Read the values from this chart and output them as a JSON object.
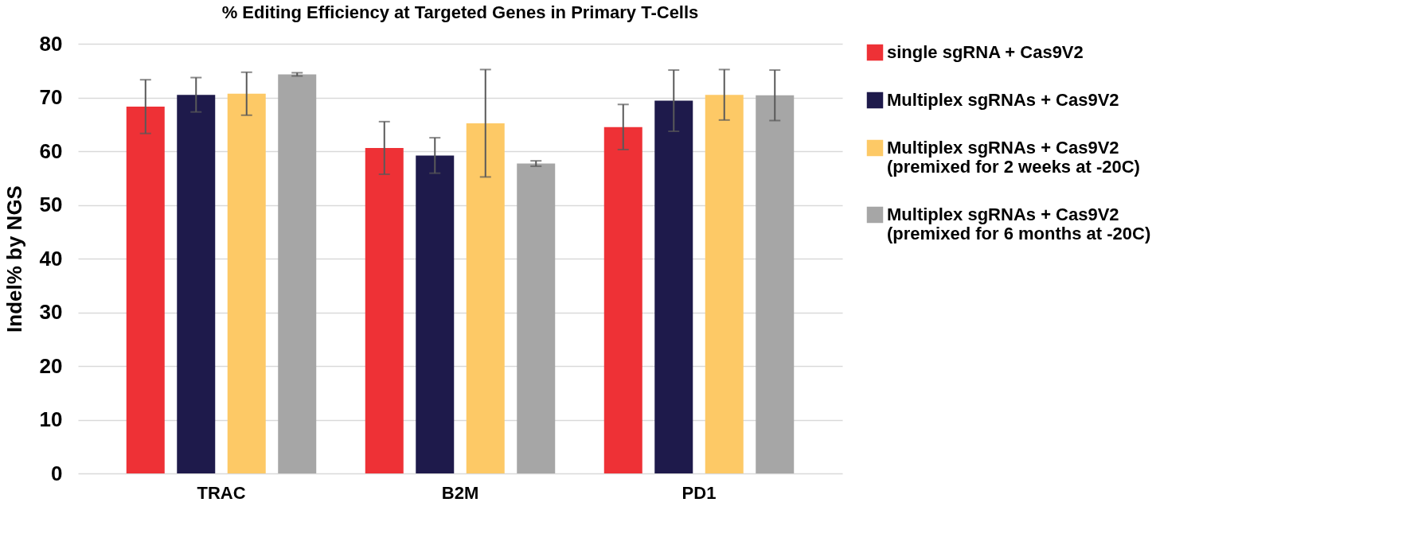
{
  "chart_data": {
    "type": "bar",
    "title": "% Editing Efficiency at Targeted Genes in Primary T-Cells",
    "ylabel": "Indel% by NGS",
    "categories": [
      "TRAC",
      "B2M",
      "PD1"
    ],
    "series": [
      {
        "name": "single sgRNA + Cas9V2",
        "color": "#ee3136",
        "values": [
          68.3,
          60.6,
          64.5
        ],
        "errors": [
          5.0,
          4.9,
          4.2
        ]
      },
      {
        "name": "Multiplex sgRNAs + Cas9V2",
        "color": "#1e1a4b",
        "values": [
          70.5,
          59.2,
          69.4
        ],
        "errors": [
          3.2,
          3.3,
          5.7
        ]
      },
      {
        "name": "Multiplex sgRNAs + Cas9V2 (premixed for 2 weeks at -20C)",
        "color": "#fdc966",
        "values": [
          70.7,
          65.2,
          70.5
        ],
        "errors": [
          4.0,
          10.0,
          4.7
        ]
      },
      {
        "name": "Multiplex sgRNAs + Cas9V2 (premixed for 6 months at -20C)",
        "color": "#a6a6a6",
        "values": [
          74.3,
          57.7,
          70.4
        ],
        "errors": [
          0.3,
          0.5,
          4.7
        ]
      }
    ],
    "ylim": [
      0,
      80
    ],
    "yticks": [
      0,
      10,
      20,
      30,
      40,
      50,
      60,
      70,
      80
    ],
    "grid": "y",
    "legend": "right"
  }
}
